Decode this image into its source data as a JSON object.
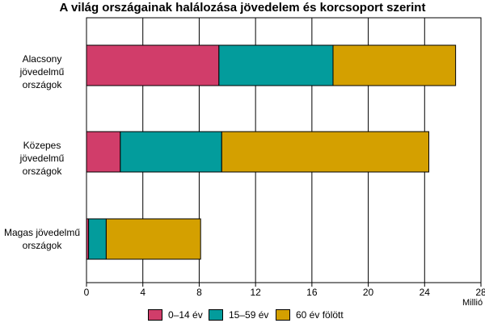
{
  "chart_data": {
    "type": "bar",
    "orientation": "horizontal",
    "stacked": true,
    "title": "A világ országainak halálozása jövedelem és korcsoport szerint",
    "categories": [
      [
        "Alacsony jövedelmű",
        "országok"
      ],
      [
        "Közepes jövedelmű",
        "országok"
      ],
      [
        "Magas jövedelmű",
        "országok"
      ]
    ],
    "series": [
      {
        "name": "0–14 év",
        "color": "#d13d6a",
        "values": [
          9.4,
          2.4,
          0.15
        ]
      },
      {
        "name": "15–59 év",
        "color": "#039c9c",
        "values": [
          8.1,
          7.2,
          1.25
        ]
      },
      {
        "name": "60 év fölött",
        "color": "#d4a000",
        "values": [
          8.7,
          14.7,
          6.7
        ]
      }
    ],
    "xlim": [
      0,
      28
    ],
    "xticks": [
      "0",
      "4",
      "8",
      "12",
      "16",
      "20",
      "24",
      "28"
    ],
    "unit": "Millió",
    "grid": true,
    "legend_position": "bottom"
  }
}
